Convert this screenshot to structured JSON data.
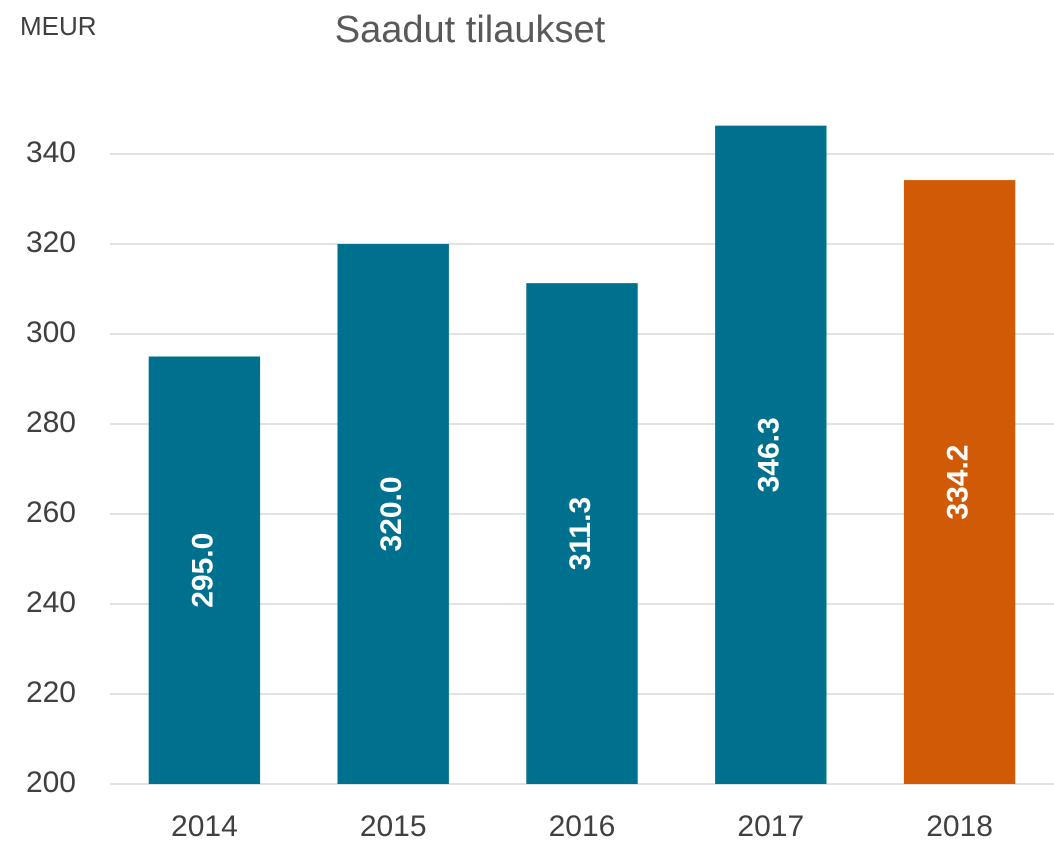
{
  "chart_data": {
    "type": "bar",
    "title": "Saadut tilaukset",
    "y_label": "MEUR",
    "categories": [
      "2014",
      "2015",
      "2016",
      "2017",
      "2018"
    ],
    "values": [
      295.0,
      320.0,
      311.3,
      346.3,
      334.2
    ],
    "value_labels": [
      "295.0",
      "320.0",
      "311.3",
      "346.3",
      "334.2"
    ],
    "colors": [
      "#00708f",
      "#00708f",
      "#00708f",
      "#00708f",
      "#d05a05"
    ],
    "ylim": [
      200,
      350
    ],
    "yticks": [
      200,
      220,
      240,
      260,
      280,
      300,
      320,
      340
    ],
    "grid": true
  }
}
